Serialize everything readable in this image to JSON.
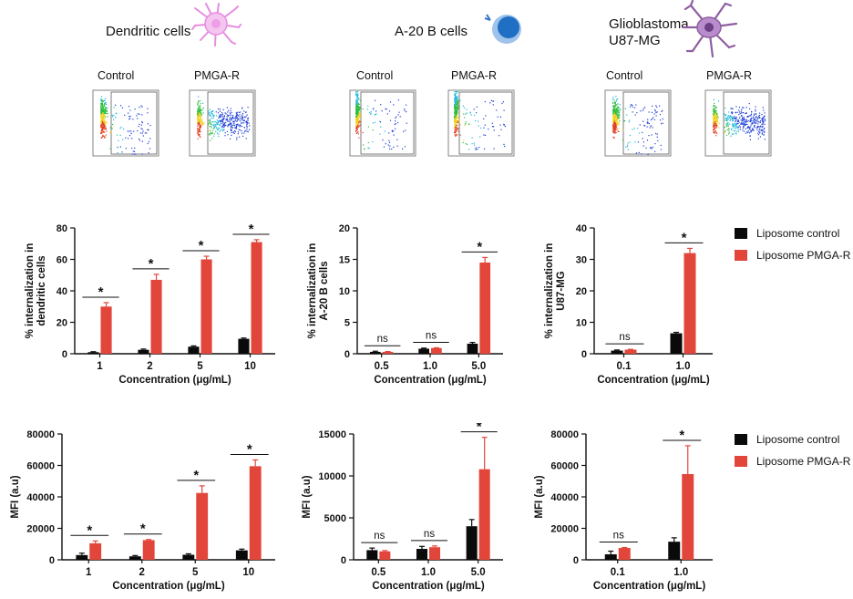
{
  "colors": {
    "control": "#0a0a0a",
    "pmga": "#e2463b"
  },
  "columns": [
    {
      "title_lines": [
        "Dendritic cells"
      ],
      "icon": "dendritic-cell-icon"
    },
    {
      "title_lines": [
        "A-20 B cells"
      ],
      "icon": "b-cell-icon"
    },
    {
      "title_lines": [
        "Glioblastoma",
        "U87-MG"
      ],
      "icon": "glioblastoma-cell-icon"
    }
  ],
  "flow_labels": {
    "control": "Control",
    "treated": "PMGA-R"
  },
  "legend": [
    "Liposome control",
    "Liposome PMGA-R"
  ],
  "chart_data": [
    {
      "type": "bar",
      "categories": [
        "1",
        "2",
        "5",
        "10"
      ],
      "series": [
        {
          "name": "Liposome control",
          "values": [
            1,
            2.5,
            4.5,
            9.5
          ],
          "errors": [
            0.3,
            0.5,
            0.5,
            0.5
          ]
        },
        {
          "name": "Liposome PMGA-R",
          "values": [
            30,
            47,
            60,
            71
          ],
          "errors": [
            2.5,
            3.5,
            2,
            1.5
          ]
        }
      ],
      "xlabel": "Concentration (μg/mL)",
      "ylabel": [
        "% internalization in",
        "dendritic cells"
      ],
      "ylim": [
        0,
        80
      ],
      "yticks": [
        "0",
        "20",
        "40",
        "60",
        "80"
      ],
      "significance": [
        "*",
        "*",
        "*",
        "*"
      ]
    },
    {
      "type": "bar",
      "categories": [
        "0.5",
        "1.0",
        "5.0"
      ],
      "series": [
        {
          "name": "Liposome control",
          "values": [
            0.3,
            0.8,
            1.6
          ],
          "errors": [
            0.1,
            0.1,
            0.2
          ]
        },
        {
          "name": "Liposome PMGA-R",
          "values": [
            0.3,
            0.9,
            14.5
          ],
          "errors": [
            0.05,
            0.05,
            0.8
          ]
        }
      ],
      "xlabel": "Concentration (μg/mL)",
      "ylabel": [
        "% internalization in",
        "A-20 B cells"
      ],
      "ylim": [
        0,
        20
      ],
      "yticks": [
        "0",
        "5",
        "10",
        "15",
        "20"
      ],
      "significance": [
        "ns",
        "ns",
        "*"
      ]
    },
    {
      "type": "bar",
      "categories": [
        "0.1",
        "1.0"
      ],
      "series": [
        {
          "name": "Liposome control",
          "values": [
            1,
            6.5
          ],
          "errors": [
            0.2,
            0.3
          ]
        },
        {
          "name": "Liposome PMGA-R",
          "values": [
            1.3,
            32
          ],
          "errors": [
            0.1,
            1.5
          ]
        }
      ],
      "xlabel": "Concentration (μg/mL)",
      "ylabel": [
        "% internalization in",
        "U87-MG"
      ],
      "ylim": [
        0,
        40
      ],
      "yticks": [
        "0",
        "10",
        "20",
        "30",
        "40"
      ],
      "significance": [
        "ns",
        "*"
      ]
    },
    {
      "type": "bar",
      "categories": [
        "1",
        "2",
        "5",
        "10"
      ],
      "series": [
        {
          "name": "Liposome control",
          "values": [
            3000,
            2200,
            3200,
            6000
          ],
          "errors": [
            1200,
            500,
            600,
            800
          ]
        },
        {
          "name": "Liposome PMGA-R",
          "values": [
            10500,
            12500,
            42500,
            59500
          ],
          "errors": [
            1500,
            400,
            4500,
            4000
          ]
        }
      ],
      "xlabel": "Concentration (μg/mL)",
      "ylabel": [
        "MFI (a.u)"
      ],
      "ylim": [
        0,
        80000
      ],
      "yticks": [
        "0",
        "20000",
        "40000",
        "60000",
        "80000"
      ],
      "significance": [
        "*",
        "*",
        "*",
        "*"
      ]
    },
    {
      "type": "bar",
      "categories": [
        "0.5",
        "1.0",
        "5.0"
      ],
      "series": [
        {
          "name": "Liposome control",
          "values": [
            1150,
            1300,
            4000
          ],
          "errors": [
            250,
            300,
            800
          ]
        },
        {
          "name": "Liposome PMGA-R",
          "values": [
            1000,
            1500,
            10800
          ],
          "errors": [
            100,
            150,
            3800
          ]
        }
      ],
      "xlabel": "Concentration (μg/mL)",
      "ylabel": [
        "MFI (a.u)"
      ],
      "ylim": [
        0,
        15000
      ],
      "yticks": [
        "0",
        "5000",
        "10000",
        "15000"
      ],
      "significance": [
        "ns",
        "ns",
        "*"
      ]
    },
    {
      "type": "bar",
      "categories": [
        "0.1",
        "1.0"
      ],
      "series": [
        {
          "name": "Liposome control",
          "values": [
            3500,
            11500
          ],
          "errors": [
            2000,
            2500
          ]
        },
        {
          "name": "Liposome PMGA-R",
          "values": [
            7500,
            54500
          ],
          "errors": [
            300,
            18000
          ]
        }
      ],
      "xlabel": "Concentration (μg/mL)",
      "ylabel": [
        "MFI (a.u)"
      ],
      "ylim": [
        0,
        80000
      ],
      "yticks": [
        "0",
        "20000",
        "40000",
        "60000",
        "80000"
      ],
      "significance": [
        "ns",
        "*"
      ]
    }
  ]
}
